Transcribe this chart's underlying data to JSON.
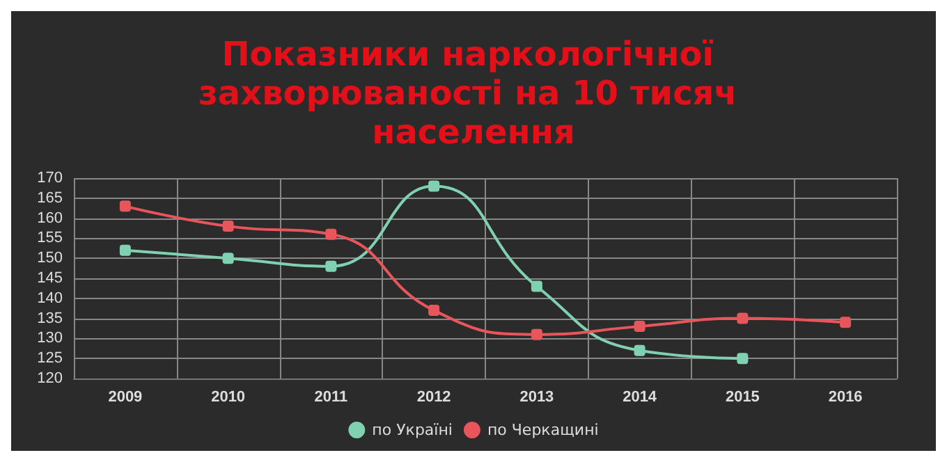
{
  "chart_data": {
    "type": "line",
    "title": "Показники наркологічної захворюваності на 10 тисяч населення",
    "categories": [
      "2009",
      "2010",
      "2011",
      "2012",
      "2013",
      "2014",
      "2015",
      "2016"
    ],
    "series": [
      {
        "name": "по Україні",
        "color": "#7fd1b2",
        "values": [
          152,
          150,
          148,
          168,
          143,
          127,
          125,
          null
        ]
      },
      {
        "name": "по Черкащині",
        "color": "#e8555a",
        "values": [
          163,
          158,
          156,
          137,
          131,
          133,
          135,
          134
        ]
      }
    ],
    "ylim": [
      120,
      170
    ],
    "yticks": [
      120,
      125,
      130,
      135,
      140,
      145,
      150,
      155,
      160,
      165,
      170
    ],
    "grid": true,
    "legend": "bottom",
    "marker": "square",
    "line_style": "solid"
  }
}
